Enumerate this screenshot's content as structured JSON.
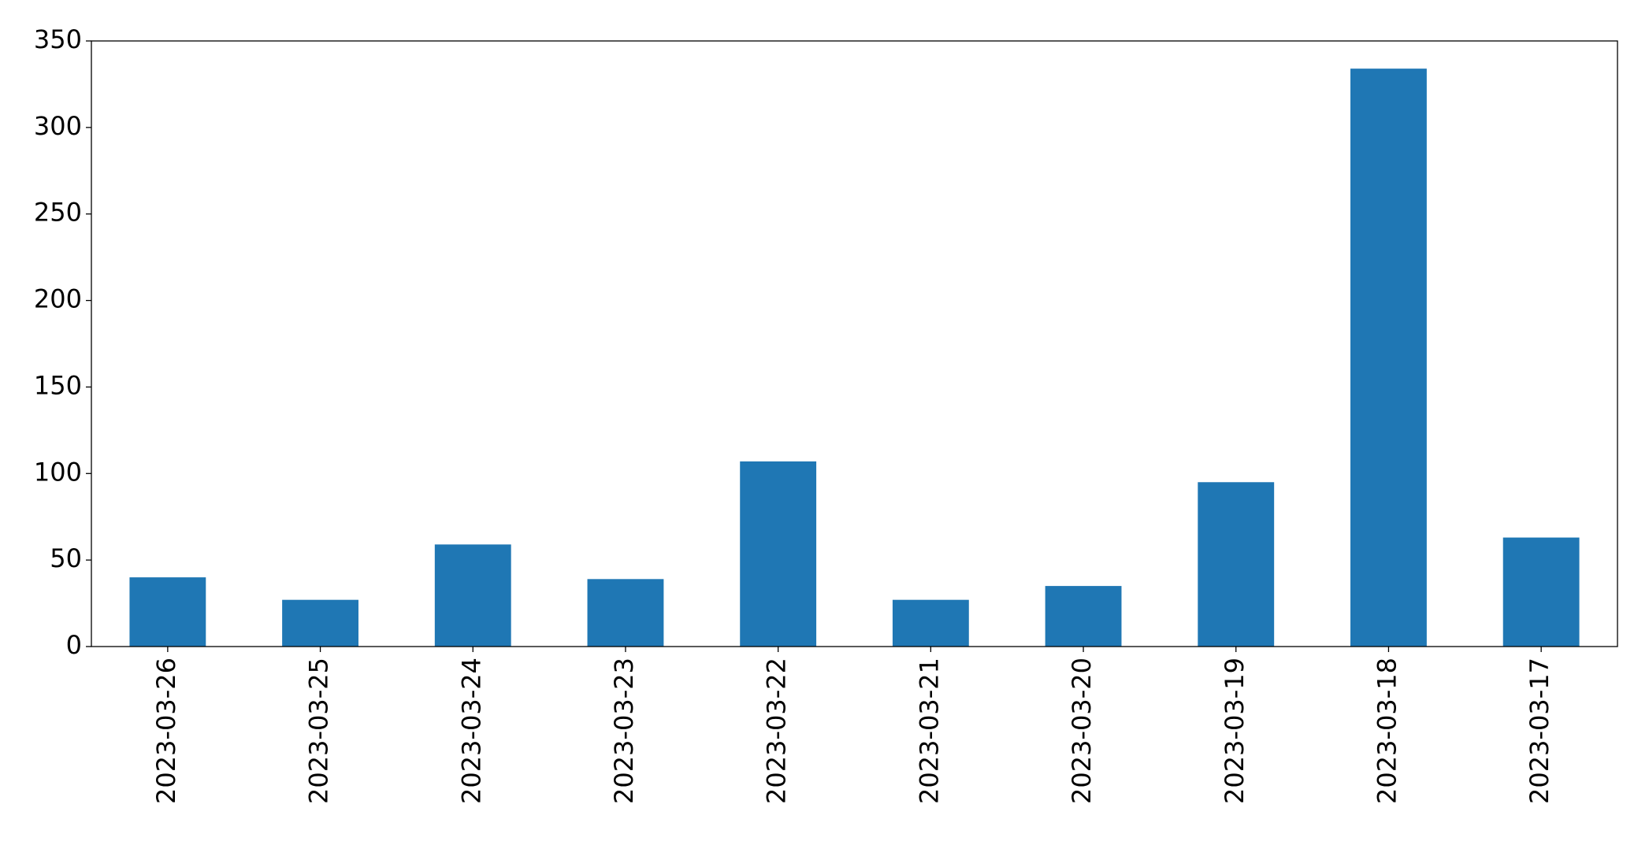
{
  "chart_data": {
    "type": "bar",
    "categories": [
      "2023-03-26",
      "2023-03-25",
      "2023-03-24",
      "2023-03-23",
      "2023-03-22",
      "2023-03-21",
      "2023-03-20",
      "2023-03-19",
      "2023-03-18",
      "2023-03-17"
    ],
    "values": [
      40,
      27,
      59,
      39,
      107,
      27,
      35,
      95,
      334,
      63
    ],
    "color": "#1f77b4",
    "ylim": [
      0,
      350
    ],
    "yticks": [
      0,
      50,
      100,
      150,
      200,
      250,
      300,
      350
    ],
    "grid": false
  }
}
